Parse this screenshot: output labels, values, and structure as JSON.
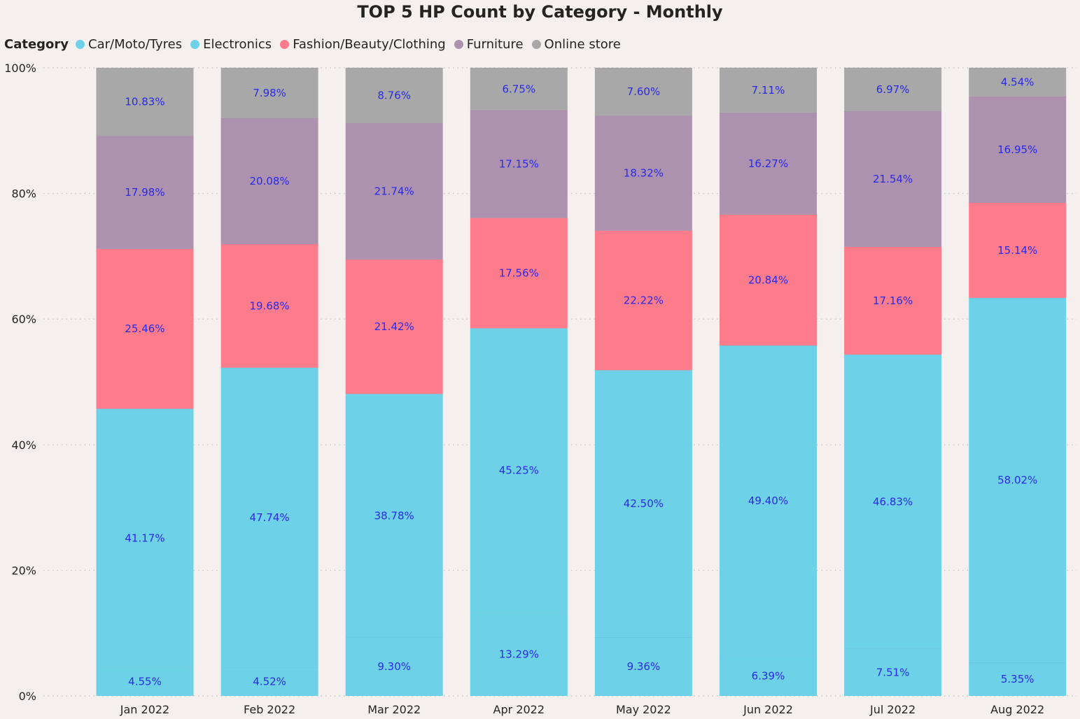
{
  "chart_data": {
    "type": "bar",
    "stacked": "percent",
    "title": "TOP 5 HP Count by Category - Monthly",
    "legend_title": "Category",
    "legend_position": "top-left",
    "categories": [
      "Jan 2022",
      "Feb 2022",
      "Mar 2022",
      "Apr 2022",
      "May 2022",
      "Jun 2022",
      "Jul 2022",
      "Aug 2022"
    ],
    "series": [
      {
        "name": "Car/Moto/Tyres",
        "color": "#6dd2e8",
        "values": [
          4.55,
          4.52,
          9.3,
          13.29,
          9.36,
          6.39,
          7.51,
          5.35
        ],
        "labels": [
          "4.55%",
          "4.52%",
          "9.30%",
          "13.29%",
          "9.36%",
          "6.39%",
          "7.51%",
          "5.35%"
        ]
      },
      {
        "name": "Electronics",
        "color": "#6dd2e8",
        "values": [
          41.17,
          47.74,
          38.78,
          45.25,
          42.5,
          49.4,
          46.83,
          58.02
        ],
        "labels": [
          "41.17%",
          "47.74%",
          "38.78%",
          "45.25%",
          "42.50%",
          "49.40%",
          "46.83%",
          "58.02%"
        ]
      },
      {
        "name": "Fashion/Beauty/Clothing",
        "color": "#fd7c8c",
        "values": [
          25.46,
          19.68,
          21.42,
          17.56,
          22.22,
          20.84,
          17.16,
          15.14
        ],
        "labels": [
          "25.46%",
          "19.68%",
          "21.42%",
          "17.56%",
          "22.22%",
          "20.84%",
          "17.16%",
          "15.14%"
        ]
      },
      {
        "name": "Furniture",
        "color": "#ad92b0",
        "values": [
          17.98,
          20.08,
          21.74,
          17.15,
          18.32,
          16.27,
          21.54,
          16.95
        ],
        "labels": [
          "17.98%",
          "20.08%",
          "21.74%",
          "17.15%",
          "18.32%",
          "16.27%",
          "21.54%",
          "16.95%"
        ]
      },
      {
        "name": "Online store",
        "color": "#a8a8a8",
        "values": [
          10.83,
          7.98,
          8.76,
          6.75,
          7.6,
          7.11,
          6.97,
          4.54
        ],
        "labels": [
          "10.83%",
          "7.98%",
          "8.76%",
          "6.75%",
          "7.60%",
          "7.11%",
          "6.97%",
          "4.54%"
        ]
      }
    ],
    "y_ticks": [
      "0%",
      "20%",
      "40%",
      "60%",
      "80%",
      "100%"
    ],
    "ylim": [
      0,
      100
    ],
    "grid": true,
    "label_color": "#2a2ae6"
  }
}
